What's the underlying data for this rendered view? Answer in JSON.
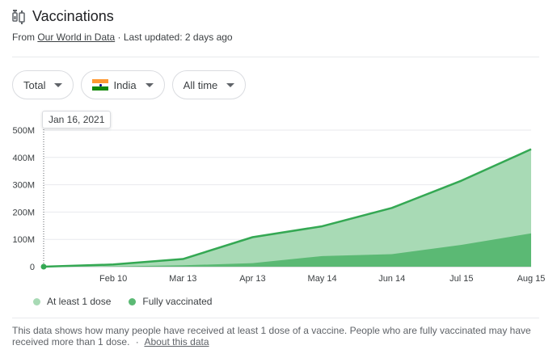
{
  "header": {
    "title": "Vaccinations",
    "icon": "vaccine-icon"
  },
  "source": {
    "prefix": "From",
    "link_text": "Our World in Data",
    "updated": "· Last updated: 2 days ago"
  },
  "filters": {
    "metric": "Total",
    "country": "India",
    "range": "All time"
  },
  "tooltip": {
    "date": "Jan 16, 2021"
  },
  "legend": {
    "first": "At least 1 dose",
    "second": "Fully vaccinated"
  },
  "colors": {
    "at_least_one": "#a8dab5",
    "fully": "#5bb974",
    "line": "#34a853",
    "grid": "#e8eaed"
  },
  "footer": {
    "text": "This data shows how many people have received at least 1 dose of a vaccine. People who are fully vaccinated may have received more than 1 dose.",
    "separator": "·",
    "link_text": "About this data"
  },
  "chart_data": {
    "type": "area",
    "ylim": [
      0,
      500000000
    ],
    "y_ticks": [
      "0",
      "100M",
      "200M",
      "300M",
      "400M",
      "500M"
    ],
    "x_ticks": [
      "Feb 10",
      "Mar 13",
      "Apr 13",
      "May 14",
      "Jun 14",
      "Jul 15",
      "Aug 15"
    ],
    "x": [
      "Jan 16",
      "Feb 10",
      "Mar 13",
      "Apr 13",
      "May 14",
      "Jun 14",
      "Jul 15",
      "Aug 15"
    ],
    "series": [
      {
        "name": "At least 1 dose",
        "values": [
          0,
          8000000,
          28000000,
          108000000,
          148000000,
          215000000,
          315000000,
          430000000
        ]
      },
      {
        "name": "Fully vaccinated",
        "values": [
          0,
          1000000,
          5000000,
          13000000,
          39000000,
          46000000,
          80000000,
          122000000
        ]
      }
    ]
  }
}
